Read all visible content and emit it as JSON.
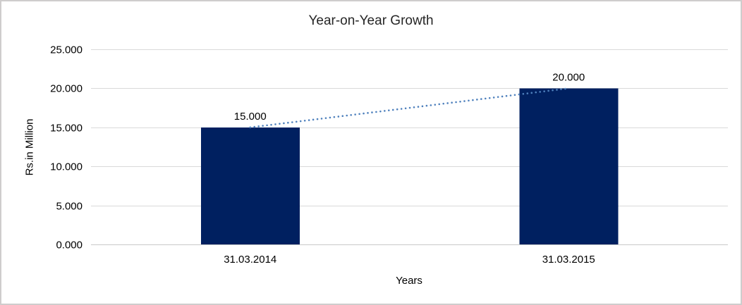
{
  "window": {
    "background": "#ffffff",
    "border_color": "#cfcdcd"
  },
  "chart_data": {
    "type": "bar",
    "title": "Year-on-Year Growth",
    "xlabel": "Years",
    "ylabel": "Rs.in Million",
    "categories": [
      "31.03.2014",
      "31.03.2015"
    ],
    "values": [
      15000,
      20000
    ],
    "data_labels": [
      "15.000",
      "20.000"
    ],
    "ylim": [
      0,
      25000
    ],
    "ytick_interval": 5000,
    "ytick_labels": [
      "0.000",
      "5.000",
      "10.000",
      "15.000",
      "20.000",
      "25.000"
    ],
    "grid": true,
    "legend": "none",
    "bar_color": "#002060",
    "gridline_color": "#d9d9d9",
    "axis_line_color": "#c9c9c9",
    "trendline": {
      "style": "dotted",
      "color": "#4f81bd",
      "from_point": "31.03.2014",
      "to_point": "31.03.2015"
    },
    "title_color": "#262626",
    "text_color": "#000000"
  }
}
